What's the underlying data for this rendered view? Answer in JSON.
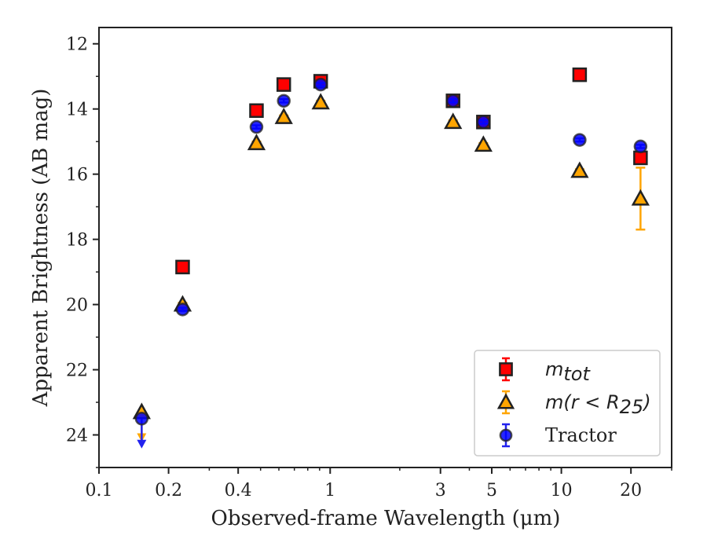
{
  "chart_data": {
    "type": "scatter",
    "xlabel": "Observed-frame Wavelength (μm)",
    "ylabel": "Apparent Brightness (AB mag)",
    "x_scale": "log",
    "xlim": [
      0.1,
      30
    ],
    "ylim": [
      25,
      11.5
    ],
    "y_inverted": true,
    "x_ticks": [
      {
        "value": 0.1,
        "label": "0.1"
      },
      {
        "value": 0.2,
        "label": "0.2"
      },
      {
        "value": 0.4,
        "label": "0.4"
      },
      {
        "value": 1,
        "label": "1"
      },
      {
        "value": 3,
        "label": "3"
      },
      {
        "value": 5,
        "label": "5"
      },
      {
        "value": 10,
        "label": "10"
      },
      {
        "value": 20,
        "label": "20"
      }
    ],
    "y_ticks": [
      {
        "value": 12,
        "label": "12"
      },
      {
        "value": 14,
        "label": "14"
      },
      {
        "value": 16,
        "label": "16"
      },
      {
        "value": 18,
        "label": "18"
      },
      {
        "value": 20,
        "label": "20"
      },
      {
        "value": 22,
        "label": "22"
      },
      {
        "value": 24,
        "label": "24"
      }
    ],
    "legend_position": "lower-right",
    "series": [
      {
        "name": "m_tot",
        "legend_math": "m",
        "legend_sub": "tot",
        "marker": "square",
        "color": "#ff0000",
        "errcolor": "#ff0000",
        "points": [
          {
            "x": 0.23,
            "y": 18.85,
            "err": 0.1
          },
          {
            "x": 0.48,
            "y": 14.05,
            "err": 0.05
          },
          {
            "x": 0.63,
            "y": 13.25,
            "err": 0.05
          },
          {
            "x": 0.91,
            "y": 13.15,
            "err": 0.05
          },
          {
            "x": 3.4,
            "y": 13.75,
            "err": 0.05
          },
          {
            "x": 4.6,
            "y": 14.4,
            "err": 0.05
          },
          {
            "x": 12.0,
            "y": 12.95,
            "err": 0.05
          },
          {
            "x": 22.0,
            "y": 15.5,
            "err": 0.1
          }
        ]
      },
      {
        "name": "m(r < R_25)",
        "legend_math": "m(r < R",
        "legend_sub": "25",
        "legend_close": ")",
        "marker": "triangle",
        "color": "#ffa500",
        "errcolor": "#ffa500",
        "points": [
          {
            "x": 0.153,
            "y": 23.3,
            "upper_limit": true
          },
          {
            "x": 0.23,
            "y": 20.0,
            "err": 0.05
          },
          {
            "x": 0.48,
            "y": 15.05,
            "err": 0.05
          },
          {
            "x": 0.63,
            "y": 14.25,
            "err": 0.05
          },
          {
            "x": 0.91,
            "y": 13.8,
            "err": 0.05
          },
          {
            "x": 3.4,
            "y": 14.4,
            "err": 0.05
          },
          {
            "x": 4.6,
            "y": 15.1,
            "err": 0.05
          },
          {
            "x": 12.0,
            "y": 15.9,
            "err": 0.05
          },
          {
            "x": 22.0,
            "y": 16.75,
            "err": 0.95
          }
        ]
      },
      {
        "name": "Tractor",
        "marker": "circle",
        "color": "#0000ff",
        "errcolor": "#2222ee",
        "points": [
          {
            "x": 0.153,
            "y": 23.5,
            "upper_limit": true
          },
          {
            "x": 0.23,
            "y": 20.15,
            "err": 0.05
          },
          {
            "x": 0.48,
            "y": 14.55,
            "err": 0.05
          },
          {
            "x": 0.63,
            "y": 13.75,
            "err": 0.05
          },
          {
            "x": 0.91,
            "y": 13.25,
            "err": 0.05
          },
          {
            "x": 3.4,
            "y": 13.75,
            "err": 0.05
          },
          {
            "x": 4.6,
            "y": 14.4,
            "err": 0.05
          },
          {
            "x": 12.0,
            "y": 14.95,
            "err": 0.05
          },
          {
            "x": 22.0,
            "y": 15.15,
            "err": 0.05
          }
        ]
      }
    ]
  }
}
